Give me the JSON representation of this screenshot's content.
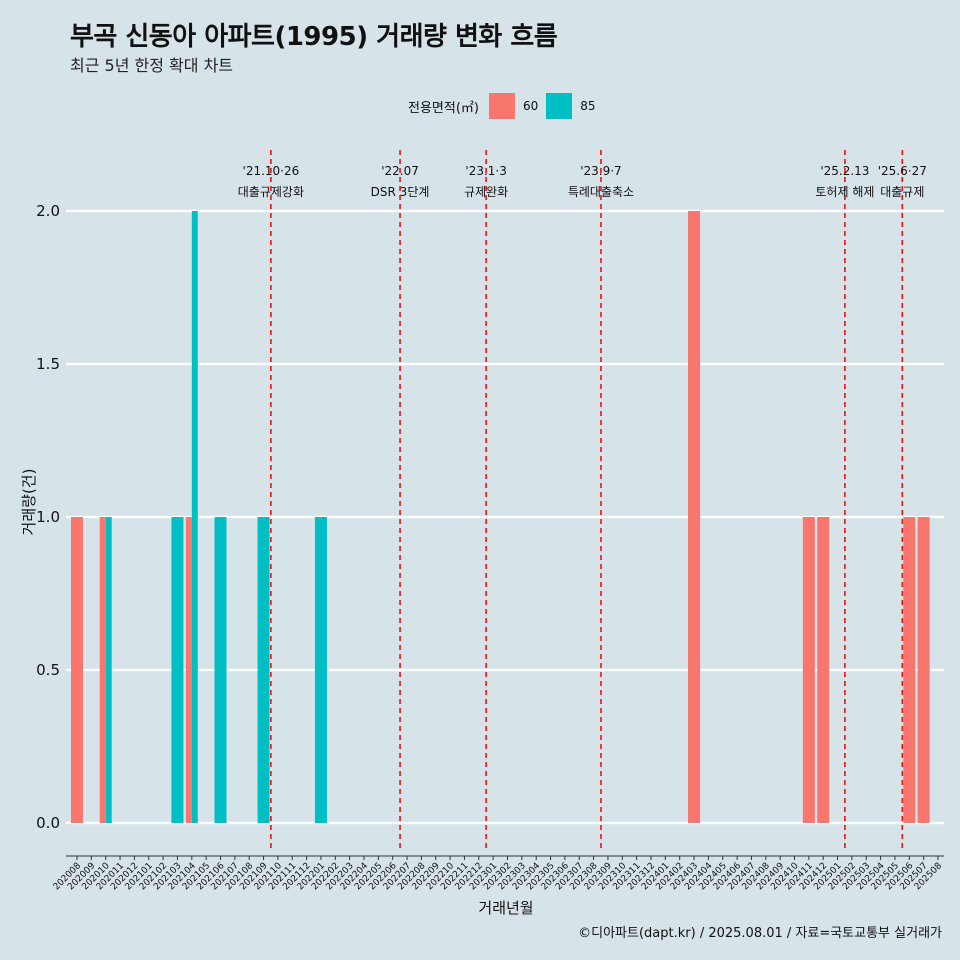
{
  "header": {
    "title": "부곡 신동아 아파트(1995) 거래량 변화 흐름",
    "subtitle": "최근 5년 한정 확대 차트"
  },
  "legend": {
    "title": "전용면적(㎡)",
    "items": [
      {
        "label": "60",
        "color": "#f8766d"
      },
      {
        "label": "85",
        "color": "#00bfc4"
      }
    ]
  },
  "caption": "©디아파트(dapt.kr) / 2025.08.01 / 자료=국토교통부 실거래가",
  "chart_data": {
    "type": "bar",
    "xlabel": "거래년월",
    "ylabel": "거래량(건)",
    "ylim": [
      0,
      2
    ],
    "yticks": [
      "0.0",
      "0.5",
      "1.0",
      "1.5",
      "2.0"
    ],
    "grid": "horizontal",
    "legend_position": "top",
    "categories": [
      "202008",
      "202009",
      "202010",
      "202011",
      "202012",
      "202101",
      "202102",
      "202103",
      "202104",
      "202105",
      "202106",
      "202107",
      "202108",
      "202109",
      "202110",
      "202111",
      "202112",
      "202201",
      "202202",
      "202203",
      "202204",
      "202205",
      "202206",
      "202207",
      "202208",
      "202209",
      "202210",
      "202211",
      "202212",
      "202301",
      "202302",
      "202303",
      "202304",
      "202305",
      "202306",
      "202307",
      "202308",
      "202309",
      "202310",
      "202311",
      "202312",
      "202401",
      "202402",
      "202403",
      "202404",
      "202405",
      "202406",
      "202407",
      "202408",
      "202409",
      "202410",
      "202411",
      "202412",
      "202501",
      "202502",
      "202503",
      "202504",
      "202505",
      "202506",
      "202507",
      "202508"
    ],
    "series": [
      {
        "name": "60",
        "color": "#f8766d",
        "values": [
          1,
          0,
          1,
          0,
          0,
          0,
          0,
          0,
          1,
          0,
          0,
          0,
          0,
          0,
          0,
          0,
          0,
          0,
          0,
          0,
          0,
          0,
          0,
          0,
          0,
          0,
          0,
          0,
          0,
          0,
          0,
          0,
          0,
          0,
          0,
          0,
          0,
          0,
          0,
          0,
          0,
          0,
          0,
          2,
          0,
          0,
          0,
          0,
          0,
          0,
          0,
          1,
          1,
          0,
          0,
          0,
          0,
          0,
          1,
          1,
          0
        ]
      },
      {
        "name": "85",
        "color": "#00bfc4",
        "values": [
          0,
          0,
          1,
          0,
          0,
          0,
          0,
          1,
          2,
          0,
          1,
          0,
          0,
          1,
          0,
          0,
          0,
          1,
          0,
          0,
          0,
          0,
          0,
          0,
          0,
          0,
          0,
          0,
          0,
          0,
          0,
          0,
          0,
          0,
          0,
          0,
          0,
          0,
          0,
          0,
          0,
          0,
          0,
          0,
          0,
          0,
          0,
          0,
          0,
          0,
          0,
          0,
          0,
          0,
          0,
          0,
          0,
          0,
          0,
          0,
          0
        ]
      }
    ],
    "annotations": [
      {
        "x": "202110",
        "date": "'21.10·26",
        "label": "대출규제강화"
      },
      {
        "x": "202207",
        "date": "'22.07",
        "label": "DSR 3단계"
      },
      {
        "x": "202301",
        "date": "'23.1·3",
        "label": "규제완화"
      },
      {
        "x": "202309",
        "date": "'23.9·7",
        "label": "특례대출축소"
      },
      {
        "x": "202502",
        "date": "'25.2.13",
        "label": "토허제 해제"
      },
      {
        "x": "202506",
        "date": "'25.6·27",
        "label": "대출규제"
      }
    ]
  }
}
